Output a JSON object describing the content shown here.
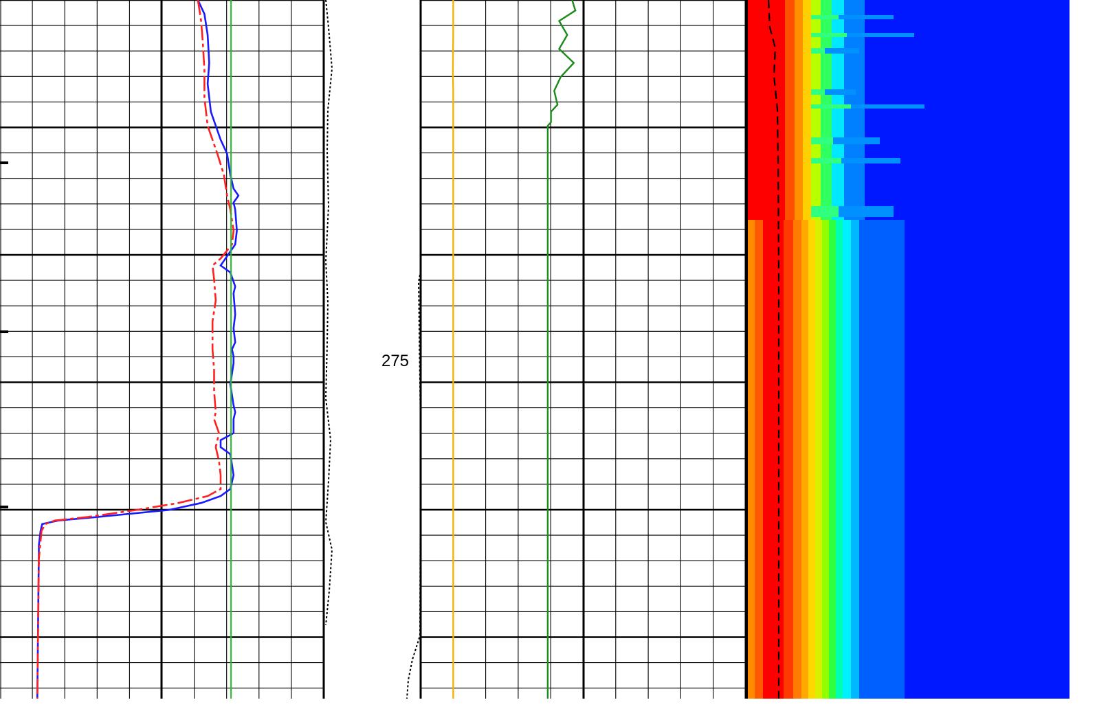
{
  "depth_label": "275",
  "colors": {
    "grid": "#000000",
    "resistivity_deep": "#1a1aff",
    "resistivity_shallow": "#ff2020",
    "baseline_green": "#1fbf1f",
    "yellow_curve": "#f2b400",
    "green_curve": "#1a8a1a",
    "dotted_curve": "#000000",
    "image_background": "#0018ff"
  },
  "chart_data": [
    {
      "type": "line",
      "track": "left",
      "xlabel": "",
      "ylabel": "",
      "grid": true,
      "series": [
        {
          "color": "#1a1aff",
          "style": "solid",
          "depth": [
            0,
            0.02,
            0.05,
            0.09,
            0.12,
            0.16,
            0.2,
            0.22,
            0.25,
            0.27,
            0.28,
            0.29,
            0.3,
            0.33,
            0.35,
            0.38,
            0.39,
            0.41,
            0.42,
            0.45,
            0.47,
            0.49,
            0.5,
            0.51,
            0.52,
            0.55,
            0.58,
            0.59,
            0.6,
            0.62,
            0.63,
            0.64,
            0.65,
            0.68,
            0.7,
            0.71,
            0.72,
            0.73,
            0.74,
            0.745,
            0.75,
            0.76,
            0.78,
            1.0
          ],
          "value": [
            0.61,
            0.63,
            0.64,
            0.645,
            0.64,
            0.65,
            0.68,
            0.7,
            0.71,
            0.72,
            0.735,
            0.72,
            0.725,
            0.73,
            0.725,
            0.68,
            0.71,
            0.725,
            0.72,
            0.725,
            0.72,
            0.725,
            0.715,
            0.72,
            0.72,
            0.71,
            0.72,
            0.725,
            0.72,
            0.72,
            0.68,
            0.68,
            0.71,
            0.72,
            0.71,
            0.68,
            0.62,
            0.52,
            0.3,
            0.18,
            0.13,
            0.125,
            0.12,
            0.115
          ]
        },
        {
          "color": "#ff2020",
          "style": "dashed",
          "depth": [
            0,
            0.03,
            0.06,
            0.1,
            0.14,
            0.18,
            0.22,
            0.25,
            0.28,
            0.3,
            0.33,
            0.35,
            0.37,
            0.38,
            0.4,
            0.43,
            0.46,
            0.5,
            0.53,
            0.56,
            0.59,
            0.6,
            0.62,
            0.64,
            0.66,
            0.68,
            0.7,
            0.71,
            0.72,
            0.73,
            0.74,
            0.745,
            0.75,
            0.76,
            0.8,
            1.0
          ],
          "value": [
            0.61,
            0.62,
            0.625,
            0.63,
            0.63,
            0.64,
            0.67,
            0.69,
            0.7,
            0.71,
            0.72,
            0.715,
            0.68,
            0.655,
            0.66,
            0.665,
            0.655,
            0.655,
            0.66,
            0.66,
            0.665,
            0.66,
            0.675,
            0.665,
            0.675,
            0.68,
            0.68,
            0.64,
            0.55,
            0.42,
            0.27,
            0.17,
            0.14,
            0.128,
            0.12,
            0.115
          ]
        },
        {
          "color": "#1fbf1f",
          "style": "solid",
          "depth": [
            0,
            1.0
          ],
          "value": [
            0.712,
            0.712
          ]
        }
      ]
    },
    {
      "type": "line",
      "track": "middle",
      "xlabel": "",
      "ylabel": "",
      "grid": true,
      "series": [
        {
          "color": "#f2b400",
          "style": "solid",
          "depth": [
            0,
            0.05,
            0.1,
            0.13,
            0.16,
            1.0
          ],
          "value": [
            0.2,
            0.2,
            0.198,
            0.2,
            0.2,
            0.2
          ]
        },
        {
          "color": "#1a8a1a",
          "style": "solid",
          "depth": [
            0,
            0.015,
            0.03,
            0.05,
            0.07,
            0.09,
            0.11,
            0.13,
            0.15,
            0.16,
            0.175,
            0.18,
            0.25,
            0.35,
            1.0
          ],
          "value": [
            0.93,
            0.95,
            0.85,
            0.9,
            0.85,
            0.94,
            0.86,
            0.82,
            0.84,
            0.8,
            0.8,
            0.78,
            0.78,
            0.78,
            0.78
          ]
        }
      ]
    }
  ]
}
